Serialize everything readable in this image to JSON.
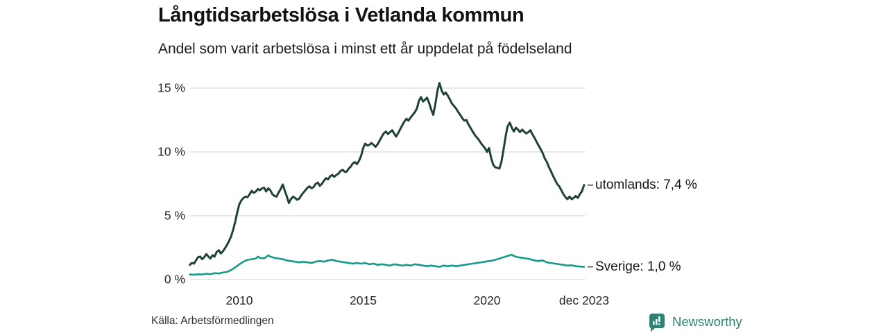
{
  "header": {
    "title": "Långtidsarbetslösa i Vetlanda kommun",
    "subtitle": "Andel som varit arbetslösa i minst ett år uppdelat på födelseland"
  },
  "footer": {
    "source": "Källa: Arbetsförmedlingen",
    "brand_name": "Newsworthy"
  },
  "colors": {
    "line_foreign_born": "#20413a",
    "line_sweden_born": "#16998a",
    "grid": "#e1e1e1",
    "tick_dash": "#4d4d4d",
    "brand": "#2e8174",
    "text": "#141414"
  },
  "chart_data": {
    "type": "line",
    "title": "Långtidsarbetslösa i Vetlanda kommun",
    "subtitle": "Andel som varit arbetslösa i minst ett år uppdelat på födelseland",
    "xlabel": "",
    "ylabel": "",
    "grid": "horizontal",
    "legend_position": "right-end-labels",
    "x_axis": {
      "range": [
        2008.0,
        2023.95
      ],
      "tick_years": [
        2010,
        2015,
        2020,
        2023.92
      ],
      "tick_labels": [
        "2010",
        "2015",
        "2020",
        "dec 2023"
      ]
    },
    "y_axis": {
      "range": [
        0,
        15.5
      ],
      "unit": "%",
      "tick_values": [
        0,
        5,
        10,
        15
      ],
      "tick_labels": [
        "0 %",
        "5 %",
        "10 %",
        "15 %"
      ]
    },
    "series": [
      {
        "name": "utomlands",
        "end_label": "utomlands: 7,4 %",
        "end_value": 7.4,
        "color": "#20413a",
        "points": [
          [
            2008.0,
            1.15
          ],
          [
            2008.08,
            1.3
          ],
          [
            2008.17,
            1.25
          ],
          [
            2008.25,
            1.5
          ],
          [
            2008.33,
            1.75
          ],
          [
            2008.42,
            1.8
          ],
          [
            2008.5,
            1.6
          ],
          [
            2008.58,
            1.75
          ],
          [
            2008.67,
            2.0
          ],
          [
            2008.75,
            1.8
          ],
          [
            2008.83,
            1.65
          ],
          [
            2008.92,
            1.9
          ],
          [
            2009.0,
            1.8
          ],
          [
            2009.08,
            2.15
          ],
          [
            2009.17,
            2.3
          ],
          [
            2009.25,
            2.05
          ],
          [
            2009.33,
            2.2
          ],
          [
            2009.42,
            2.45
          ],
          [
            2009.5,
            2.7
          ],
          [
            2009.58,
            3.0
          ],
          [
            2009.67,
            3.4
          ],
          [
            2009.75,
            3.9
          ],
          [
            2009.83,
            4.5
          ],
          [
            2009.92,
            5.3
          ],
          [
            2010.0,
            5.9
          ],
          [
            2010.08,
            6.2
          ],
          [
            2010.17,
            6.4
          ],
          [
            2010.25,
            6.5
          ],
          [
            2010.33,
            6.45
          ],
          [
            2010.42,
            6.7
          ],
          [
            2010.5,
            6.95
          ],
          [
            2010.58,
            6.8
          ],
          [
            2010.67,
            6.9
          ],
          [
            2010.75,
            7.1
          ],
          [
            2010.83,
            7.0
          ],
          [
            2010.92,
            7.15
          ],
          [
            2011.0,
            7.2
          ],
          [
            2011.08,
            6.9
          ],
          [
            2011.17,
            7.15
          ],
          [
            2011.25,
            7.0
          ],
          [
            2011.33,
            6.7
          ],
          [
            2011.42,
            6.55
          ],
          [
            2011.5,
            6.5
          ],
          [
            2011.58,
            6.8
          ],
          [
            2011.67,
            7.1
          ],
          [
            2011.75,
            7.45
          ],
          [
            2011.83,
            7.0
          ],
          [
            2011.92,
            6.5
          ],
          [
            2012.0,
            6.0
          ],
          [
            2012.08,
            6.3
          ],
          [
            2012.17,
            6.5
          ],
          [
            2012.25,
            6.4
          ],
          [
            2012.33,
            6.25
          ],
          [
            2012.42,
            6.35
          ],
          [
            2012.5,
            6.6
          ],
          [
            2012.58,
            6.8
          ],
          [
            2012.67,
            7.0
          ],
          [
            2012.75,
            7.2
          ],
          [
            2012.83,
            7.3
          ],
          [
            2012.92,
            7.15
          ],
          [
            2013.0,
            7.25
          ],
          [
            2013.08,
            7.5
          ],
          [
            2013.17,
            7.6
          ],
          [
            2013.25,
            7.35
          ],
          [
            2013.33,
            7.5
          ],
          [
            2013.42,
            7.75
          ],
          [
            2013.5,
            7.95
          ],
          [
            2013.58,
            7.85
          ],
          [
            2013.67,
            8.1
          ],
          [
            2013.75,
            8.2
          ],
          [
            2013.83,
            8.05
          ],
          [
            2013.92,
            8.2
          ],
          [
            2014.0,
            8.3
          ],
          [
            2014.08,
            8.5
          ],
          [
            2014.17,
            8.6
          ],
          [
            2014.25,
            8.45
          ],
          [
            2014.33,
            8.45
          ],
          [
            2014.42,
            8.7
          ],
          [
            2014.5,
            8.85
          ],
          [
            2014.58,
            9.1
          ],
          [
            2014.67,
            9.2
          ],
          [
            2014.75,
            9.05
          ],
          [
            2014.83,
            9.3
          ],
          [
            2014.92,
            9.7
          ],
          [
            2015.0,
            10.3
          ],
          [
            2015.08,
            10.65
          ],
          [
            2015.17,
            10.5
          ],
          [
            2015.25,
            10.55
          ],
          [
            2015.33,
            10.7
          ],
          [
            2015.42,
            10.55
          ],
          [
            2015.5,
            10.4
          ],
          [
            2015.58,
            10.6
          ],
          [
            2015.67,
            10.9
          ],
          [
            2015.75,
            11.2
          ],
          [
            2015.83,
            11.45
          ],
          [
            2015.92,
            11.6
          ],
          [
            2016.0,
            11.4
          ],
          [
            2016.08,
            11.55
          ],
          [
            2016.17,
            11.7
          ],
          [
            2016.25,
            11.45
          ],
          [
            2016.33,
            11.2
          ],
          [
            2016.42,
            11.5
          ],
          [
            2016.5,
            11.8
          ],
          [
            2016.58,
            12.1
          ],
          [
            2016.67,
            12.4
          ],
          [
            2016.75,
            12.6
          ],
          [
            2016.83,
            12.45
          ],
          [
            2016.92,
            12.7
          ],
          [
            2017.0,
            12.9
          ],
          [
            2017.08,
            13.1
          ],
          [
            2017.17,
            13.4
          ],
          [
            2017.25,
            14.0
          ],
          [
            2017.33,
            14.3
          ],
          [
            2017.42,
            13.95
          ],
          [
            2017.5,
            14.1
          ],
          [
            2017.58,
            14.25
          ],
          [
            2017.67,
            13.8
          ],
          [
            2017.75,
            13.3
          ],
          [
            2017.83,
            12.9
          ],
          [
            2017.92,
            13.8
          ],
          [
            2018.0,
            14.8
          ],
          [
            2018.08,
            15.4
          ],
          [
            2018.17,
            14.8
          ],
          [
            2018.25,
            14.5
          ],
          [
            2018.33,
            14.65
          ],
          [
            2018.42,
            14.4
          ],
          [
            2018.5,
            14.1
          ],
          [
            2018.58,
            13.8
          ],
          [
            2018.67,
            13.6
          ],
          [
            2018.75,
            13.4
          ],
          [
            2018.83,
            13.15
          ],
          [
            2018.92,
            12.9
          ],
          [
            2019.0,
            12.65
          ],
          [
            2019.08,
            12.45
          ],
          [
            2019.17,
            12.5
          ],
          [
            2019.25,
            12.15
          ],
          [
            2019.33,
            11.9
          ],
          [
            2019.42,
            11.6
          ],
          [
            2019.5,
            11.35
          ],
          [
            2019.58,
            11.15
          ],
          [
            2019.67,
            10.95
          ],
          [
            2019.75,
            10.7
          ],
          [
            2019.83,
            10.5
          ],
          [
            2019.92,
            10.3
          ],
          [
            2020.0,
            10.0
          ],
          [
            2020.08,
            10.3
          ],
          [
            2020.17,
            9.5
          ],
          [
            2020.25,
            9.0
          ],
          [
            2020.33,
            8.8
          ],
          [
            2020.42,
            8.75
          ],
          [
            2020.5,
            8.7
          ],
          [
            2020.58,
            9.2
          ],
          [
            2020.67,
            10.2
          ],
          [
            2020.75,
            11.2
          ],
          [
            2020.83,
            12.0
          ],
          [
            2020.92,
            12.3
          ],
          [
            2021.0,
            11.9
          ],
          [
            2021.08,
            11.6
          ],
          [
            2021.17,
            11.9
          ],
          [
            2021.25,
            11.75
          ],
          [
            2021.33,
            11.55
          ],
          [
            2021.42,
            11.75
          ],
          [
            2021.5,
            11.6
          ],
          [
            2021.58,
            11.45
          ],
          [
            2021.67,
            11.55
          ],
          [
            2021.75,
            11.7
          ],
          [
            2021.83,
            11.4
          ],
          [
            2021.92,
            11.1
          ],
          [
            2022.0,
            10.8
          ],
          [
            2022.08,
            10.5
          ],
          [
            2022.17,
            10.2
          ],
          [
            2022.25,
            9.9
          ],
          [
            2022.33,
            9.5
          ],
          [
            2022.42,
            9.2
          ],
          [
            2022.5,
            8.8
          ],
          [
            2022.58,
            8.5
          ],
          [
            2022.67,
            8.1
          ],
          [
            2022.75,
            7.8
          ],
          [
            2022.83,
            7.5
          ],
          [
            2022.92,
            7.3
          ],
          [
            2023.0,
            7.0
          ],
          [
            2023.08,
            6.7
          ],
          [
            2023.17,
            6.45
          ],
          [
            2023.25,
            6.3
          ],
          [
            2023.33,
            6.5
          ],
          [
            2023.42,
            6.3
          ],
          [
            2023.5,
            6.4
          ],
          [
            2023.58,
            6.55
          ],
          [
            2023.67,
            6.4
          ],
          [
            2023.75,
            6.7
          ],
          [
            2023.83,
            6.9
          ],
          [
            2023.92,
            7.4
          ]
        ]
      },
      {
        "name": "Sverige",
        "end_label": "Sverige: 1,0 %",
        "end_value": 1.0,
        "color": "#16998a",
        "points": [
          [
            2008.0,
            0.4
          ],
          [
            2008.17,
            0.38
          ],
          [
            2008.33,
            0.42
          ],
          [
            2008.5,
            0.4
          ],
          [
            2008.67,
            0.45
          ],
          [
            2008.83,
            0.42
          ],
          [
            2009.0,
            0.5
          ],
          [
            2009.17,
            0.48
          ],
          [
            2009.33,
            0.55
          ],
          [
            2009.5,
            0.6
          ],
          [
            2009.67,
            0.75
          ],
          [
            2009.83,
            0.95
          ],
          [
            2010.0,
            1.2
          ],
          [
            2010.17,
            1.4
          ],
          [
            2010.33,
            1.55
          ],
          [
            2010.5,
            1.6
          ],
          [
            2010.67,
            1.65
          ],
          [
            2010.75,
            1.8
          ],
          [
            2010.83,
            1.7
          ],
          [
            2011.0,
            1.65
          ],
          [
            2011.17,
            1.9
          ],
          [
            2011.25,
            1.8
          ],
          [
            2011.42,
            1.7
          ],
          [
            2011.58,
            1.65
          ],
          [
            2011.75,
            1.6
          ],
          [
            2011.92,
            1.5
          ],
          [
            2012.08,
            1.45
          ],
          [
            2012.25,
            1.4
          ],
          [
            2012.42,
            1.35
          ],
          [
            2012.58,
            1.4
          ],
          [
            2012.75,
            1.35
          ],
          [
            2012.92,
            1.3
          ],
          [
            2013.08,
            1.4
          ],
          [
            2013.25,
            1.45
          ],
          [
            2013.42,
            1.4
          ],
          [
            2013.58,
            1.5
          ],
          [
            2013.75,
            1.55
          ],
          [
            2013.92,
            1.45
          ],
          [
            2014.08,
            1.4
          ],
          [
            2014.25,
            1.35
          ],
          [
            2014.42,
            1.3
          ],
          [
            2014.58,
            1.25
          ],
          [
            2014.75,
            1.3
          ],
          [
            2014.92,
            1.25
          ],
          [
            2015.08,
            1.3
          ],
          [
            2015.25,
            1.2
          ],
          [
            2015.42,
            1.25
          ],
          [
            2015.58,
            1.15
          ],
          [
            2015.75,
            1.2
          ],
          [
            2015.92,
            1.15
          ],
          [
            2016.08,
            1.1
          ],
          [
            2016.25,
            1.2
          ],
          [
            2016.42,
            1.15
          ],
          [
            2016.58,
            1.1
          ],
          [
            2016.75,
            1.15
          ],
          [
            2016.92,
            1.1
          ],
          [
            2017.08,
            1.2
          ],
          [
            2017.25,
            1.15
          ],
          [
            2017.42,
            1.1
          ],
          [
            2017.58,
            1.05
          ],
          [
            2017.75,
            1.1
          ],
          [
            2017.92,
            1.05
          ],
          [
            2018.08,
            1.0
          ],
          [
            2018.25,
            1.1
          ],
          [
            2018.42,
            1.05
          ],
          [
            2018.58,
            1.1
          ],
          [
            2018.75,
            1.05
          ],
          [
            2018.92,
            1.1
          ],
          [
            2019.08,
            1.15
          ],
          [
            2019.25,
            1.2
          ],
          [
            2019.42,
            1.25
          ],
          [
            2019.58,
            1.3
          ],
          [
            2019.75,
            1.35
          ],
          [
            2019.92,
            1.4
          ],
          [
            2020.08,
            1.45
          ],
          [
            2020.25,
            1.5
          ],
          [
            2020.42,
            1.6
          ],
          [
            2020.58,
            1.7
          ],
          [
            2020.75,
            1.8
          ],
          [
            2020.92,
            1.9
          ],
          [
            2021.0,
            1.95
          ],
          [
            2021.08,
            1.85
          ],
          [
            2021.25,
            1.75
          ],
          [
            2021.42,
            1.7
          ],
          [
            2021.58,
            1.65
          ],
          [
            2021.75,
            1.6
          ],
          [
            2021.92,
            1.5
          ],
          [
            2022.08,
            1.45
          ],
          [
            2022.25,
            1.5
          ],
          [
            2022.42,
            1.35
          ],
          [
            2022.58,
            1.3
          ],
          [
            2022.75,
            1.25
          ],
          [
            2022.92,
            1.2
          ],
          [
            2023.08,
            1.15
          ],
          [
            2023.25,
            1.1
          ],
          [
            2023.42,
            1.12
          ],
          [
            2023.58,
            1.05
          ],
          [
            2023.75,
            1.02
          ],
          [
            2023.92,
            1.0
          ]
        ]
      }
    ]
  }
}
